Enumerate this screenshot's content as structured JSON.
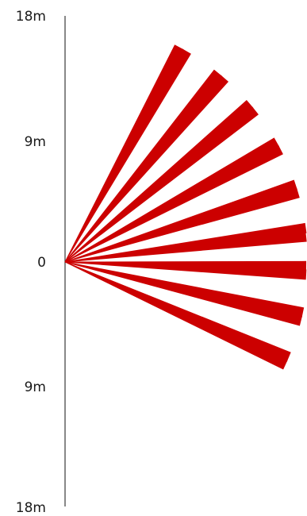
{
  "diagram": {
    "axis": {
      "labels": [
        "18m",
        "9m",
        "0",
        "9m",
        "18m"
      ],
      "range_m": [
        -18,
        18
      ]
    },
    "beam_color": "#cc0000",
    "beam_reach_m": 20,
    "beam_pairs_angle_deg": [
      [
        62.0,
        60.0
      ],
      [
        51.0,
        49.0
      ],
      [
        40.5,
        38.5
      ],
      [
        29.5,
        27.5
      ],
      [
        18.5,
        16.5
      ],
      [
        8.0,
        6.0
      ],
      [
        -1.0,
        -3.0
      ],
      [
        -12.0,
        -14.0
      ],
      [
        -23.0,
        -25.0
      ]
    ]
  }
}
